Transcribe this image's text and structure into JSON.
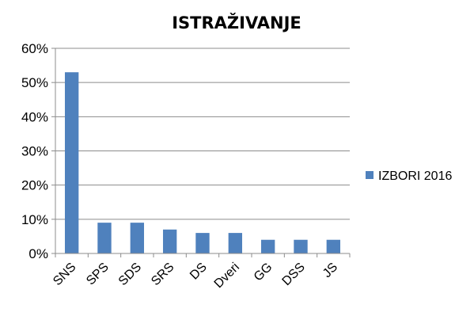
{
  "chart_data": {
    "type": "bar",
    "title": "ISTRAŽIVANJE",
    "categories": [
      "SNS",
      "SPS",
      "SDS",
      "SRS",
      "DS",
      "Dveri",
      "GG",
      "DSS",
      "JS"
    ],
    "series": [
      {
        "name": "IZBORI 2016",
        "values": [
          53,
          9,
          9,
          7,
          6,
          6,
          4,
          4,
          4
        ],
        "color": "#4f81bd"
      }
    ],
    "value_format": "percent",
    "ylim": [
      0,
      60
    ],
    "yticks": [
      0,
      10,
      20,
      30,
      40,
      50,
      60
    ],
    "ytick_labels": [
      "0%",
      "10%",
      "20%",
      "30%",
      "40%",
      "50%",
      "60%"
    ],
    "xlabel": "",
    "ylabel": "",
    "grid": true,
    "legend_position": "right"
  }
}
